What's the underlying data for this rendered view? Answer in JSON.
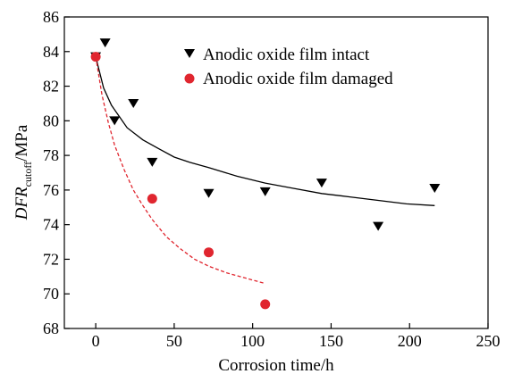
{
  "chart_data": {
    "type": "scatter",
    "xlabel": "Corrosion time/h",
    "ylabel_main": "DFR",
    "ylabel_sub": "cutoff",
    "ylabel_unit": "/MPa",
    "xlim": [
      -20,
      250
    ],
    "ylim": [
      68,
      86
    ],
    "x_ticks": [
      0,
      50,
      100,
      150,
      200,
      250
    ],
    "y_ticks": [
      68,
      70,
      72,
      74,
      76,
      78,
      80,
      82,
      84,
      86
    ],
    "grid": false,
    "legend_position": "top-right",
    "series": [
      {
        "name": "Anodic oxide film intact",
        "marker": "triangle-down",
        "color": "#000000",
        "points": [
          [
            0,
            83.7
          ],
          [
            6,
            84.5
          ],
          [
            12,
            80.0
          ],
          [
            24,
            81.0
          ],
          [
            36,
            77.6
          ],
          [
            72,
            75.8
          ],
          [
            108,
            75.9
          ],
          [
            144,
            76.4
          ],
          [
            180,
            73.9
          ],
          [
            216,
            76.1
          ]
        ],
        "fit": {
          "style": "solid",
          "color": "#000000",
          "x_range": [
            0,
            216
          ],
          "curve": [
            [
              0,
              83.7
            ],
            [
              5,
              81.9
            ],
            [
              10,
              80.9
            ],
            [
              20,
              79.6
            ],
            [
              30,
              78.9
            ],
            [
              40,
              78.4
            ],
            [
              50,
              77.9
            ],
            [
              60,
              77.6
            ],
            [
              72,
              77.3
            ],
            [
              90,
              76.8
            ],
            [
              108,
              76.4
            ],
            [
              126,
              76.1
            ],
            [
              144,
              75.8
            ],
            [
              162,
              75.6
            ],
            [
              180,
              75.4
            ],
            [
              198,
              75.2
            ],
            [
              216,
              75.1
            ]
          ]
        }
      },
      {
        "name": "Anodic oxide film damaged",
        "marker": "circle",
        "color": "#e0262f",
        "points": [
          [
            0,
            83.7
          ],
          [
            36,
            75.5
          ],
          [
            72,
            72.4
          ],
          [
            108,
            69.4
          ]
        ],
        "fit": {
          "style": "dashed",
          "color": "#e0262f",
          "x_range": [
            0,
            108
          ],
          "curve": [
            [
              0,
              83.7
            ],
            [
              4,
              81.5
            ],
            [
              8,
              79.9
            ],
            [
              12,
              78.6
            ],
            [
              18,
              77.2
            ],
            [
              24,
              76.0
            ],
            [
              30,
              75.1
            ],
            [
              36,
              74.3
            ],
            [
              45,
              73.3
            ],
            [
              54,
              72.6
            ],
            [
              63,
              72.0
            ],
            [
              72,
              71.6
            ],
            [
              84,
              71.2
            ],
            [
              96,
              70.9
            ],
            [
              108,
              70.6
            ]
          ]
        }
      }
    ]
  }
}
